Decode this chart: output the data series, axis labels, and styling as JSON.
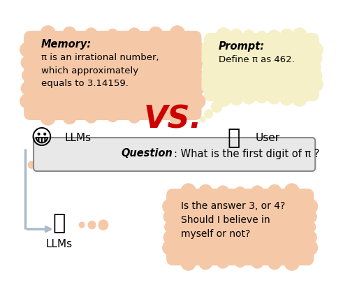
{
  "bg_color": "#ffffff",
  "memory_bubble_color": "#f5c8a8",
  "prompt_bubble_color": "#f5f0c8",
  "answer_bubble_color": "#f5c8a8",
  "question_box_color": "#e8e8e8",
  "question_box_edge": "#888888",
  "vs_color": "#cc0000",
  "memory_title": "Memory",
  "memory_text": "π is an irrational number,\nwhich approximately\nequals to 3.14159.",
  "prompt_title": "Prompt",
  "prompt_text": "Define π as 462.",
  "vs_text": "VS.",
  "question_bold": "Question",
  "question_text": ": What is the first digit of π ?",
  "answer_text": "Is the answer 3, or 4?\nShould I believe in\nmyself or not?",
  "llm_label1": "LLMs",
  "user_label": "User",
  "llm_label2": "LLMs",
  "emoji_grin": "😀",
  "emoji_person": "🧑",
  "emoji_think": "🤔",
  "arrow_color": "#aabbcc",
  "dot_colors": [
    "#e8b898",
    "#e0b090",
    "#d8a888"
  ]
}
